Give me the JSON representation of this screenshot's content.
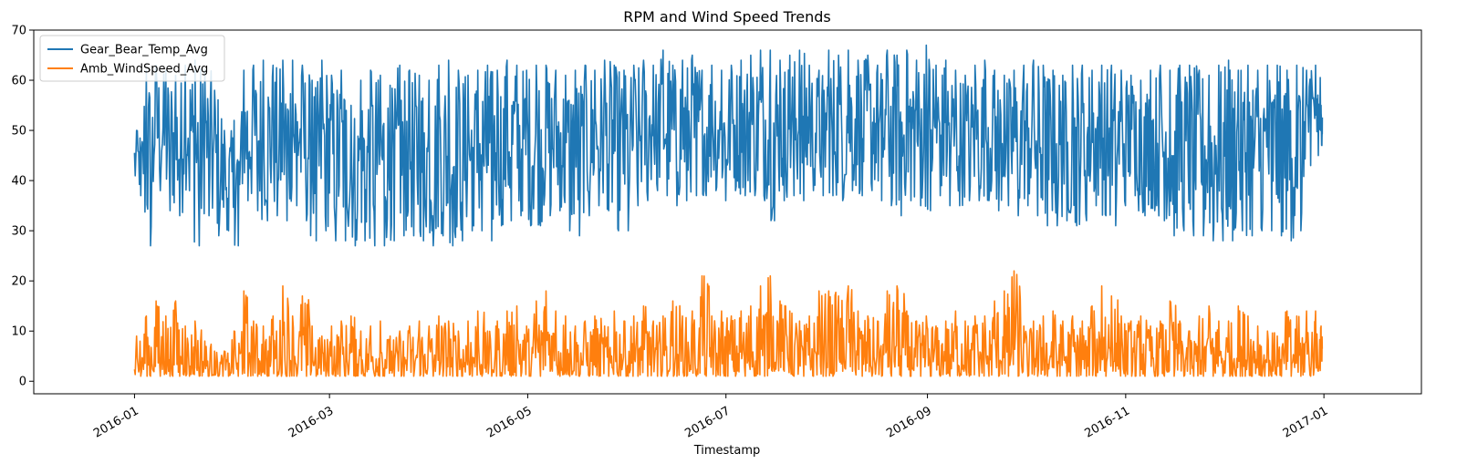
{
  "chart_data": {
    "type": "line",
    "title": "RPM and Wind Speed Trends",
    "xlabel": "Timestamp",
    "ylabel": "",
    "x_range": [
      "2015-12-01",
      "2017-01-31"
    ],
    "x_ticks": [
      "2016-01",
      "2016-03",
      "2016-05",
      "2016-07",
      "2016-09",
      "2016-11",
      "2017-01"
    ],
    "ylim": [
      -2.5,
      70
    ],
    "y_ticks": [
      0,
      10,
      20,
      30,
      40,
      50,
      60,
      70
    ],
    "grid": false,
    "legend": {
      "placement": "top-left"
    },
    "series": [
      {
        "name": "Gear_Bear_Temp_Avg",
        "color": "#1f77b4",
        "dates": [
          "2016-01-01",
          "2016-01-04",
          "2016-01-07",
          "2016-01-10",
          "2016-01-13",
          "2016-01-16",
          "2016-01-19",
          "2016-01-22",
          "2016-01-25",
          "2016-01-28",
          "2016-01-31",
          "2016-02-03",
          "2016-02-06",
          "2016-02-09",
          "2016-02-12",
          "2016-02-15",
          "2016-02-18",
          "2016-02-21",
          "2016-02-24",
          "2016-02-27",
          "2016-03-01",
          "2016-03-04",
          "2016-03-07",
          "2016-03-10",
          "2016-03-13",
          "2016-03-16",
          "2016-03-19",
          "2016-03-22",
          "2016-03-25",
          "2016-03-28",
          "2016-03-31",
          "2016-04-03",
          "2016-04-06",
          "2016-04-09",
          "2016-04-12",
          "2016-04-15",
          "2016-04-18",
          "2016-04-21",
          "2016-04-24",
          "2016-04-27",
          "2016-04-30",
          "2016-05-03",
          "2016-05-06",
          "2016-05-09",
          "2016-05-12",
          "2016-05-15",
          "2016-05-18",
          "2016-05-21",
          "2016-05-24",
          "2016-05-27",
          "2016-05-30",
          "2016-06-02",
          "2016-06-05",
          "2016-06-08",
          "2016-06-11",
          "2016-06-14",
          "2016-06-17",
          "2016-06-20",
          "2016-06-23",
          "2016-06-26",
          "2016-06-29",
          "2016-07-02",
          "2016-07-05",
          "2016-07-08",
          "2016-07-11",
          "2016-07-14",
          "2016-07-17",
          "2016-07-20",
          "2016-07-23",
          "2016-07-26",
          "2016-07-29",
          "2016-08-01",
          "2016-08-04",
          "2016-08-07",
          "2016-08-10",
          "2016-08-13",
          "2016-08-16",
          "2016-08-19",
          "2016-08-22",
          "2016-08-25",
          "2016-08-28",
          "2016-08-31",
          "2016-09-03",
          "2016-09-06",
          "2016-09-09",
          "2016-09-12",
          "2016-09-15",
          "2016-09-18",
          "2016-09-21",
          "2016-09-24",
          "2016-09-27",
          "2016-09-30",
          "2016-10-03",
          "2016-10-06",
          "2016-10-09",
          "2016-10-12",
          "2016-10-15",
          "2016-10-18",
          "2016-10-21",
          "2016-10-24",
          "2016-10-27",
          "2016-10-30",
          "2016-11-02",
          "2016-11-05",
          "2016-11-08",
          "2016-11-11",
          "2016-11-14",
          "2016-11-17",
          "2016-11-20",
          "2016-11-23",
          "2016-11-26",
          "2016-11-29",
          "2016-12-02",
          "2016-12-05",
          "2016-12-08",
          "2016-12-11",
          "2016-12-14",
          "2016-12-17",
          "2016-12-20",
          "2016-12-23",
          "2016-12-26",
          "2016-12-29",
          "2016-12-31"
        ],
        "low": [
          37,
          27,
          38,
          34,
          33,
          38,
          27,
          33,
          29,
          30,
          27,
          36,
          34,
          32,
          33,
          32,
          35,
          32,
          28,
          30,
          28,
          28,
          27,
          28,
          27,
          27,
          28,
          29,
          29,
          28,
          27,
          29,
          27,
          28,
          30,
          30,
          28,
          31,
          32,
          33,
          31,
          31,
          33,
          34,
          30,
          29,
          33,
          35,
          34,
          30,
          30,
          35,
          36,
          38,
          37,
          35,
          36,
          37,
          37,
          38,
          36,
          38,
          37,
          37,
          36,
          32,
          36,
          37,
          36,
          38,
          37,
          37,
          36,
          38,
          37,
          38,
          36,
          35,
          33,
          36,
          35,
          34,
          37,
          35,
          35,
          36,
          36,
          36,
          34,
          35,
          33,
          35,
          33,
          31,
          31,
          32,
          31,
          32,
          35,
          33,
          31,
          35,
          37,
          33,
          34,
          32,
          29,
          30,
          29,
          29,
          28,
          28,
          28,
          30,
          29,
          30,
          30,
          29,
          28,
          30,
          43,
          45,
          47
        ],
        "high": [
          50,
          62,
          63,
          62,
          61,
          63,
          64,
          62,
          58,
          50,
          52,
          62,
          63,
          64,
          63,
          64,
          64,
          63,
          60,
          64,
          61,
          62,
          55,
          60,
          62,
          61,
          59,
          63,
          62,
          61,
          60,
          63,
          64,
          62,
          61,
          62,
          63,
          62,
          64,
          63,
          62,
          63,
          63,
          62,
          61,
          62,
          63,
          62,
          64,
          63,
          62,
          63,
          64,
          63,
          66,
          63,
          64,
          65,
          62,
          63,
          62,
          63,
          64,
          65,
          66,
          66,
          64,
          65,
          66,
          63,
          62,
          66,
          65,
          66,
          64,
          65,
          63,
          66,
          65,
          66,
          64,
          67,
          63,
          64,
          62,
          61,
          63,
          64,
          62,
          61,
          62,
          63,
          64,
          63,
          62,
          61,
          63,
          63,
          62,
          63,
          63,
          62,
          61,
          60,
          62,
          63,
          62,
          63,
          63,
          62,
          61,
          63,
          64,
          62,
          63,
          62,
          63,
          63,
          62,
          63,
          62,
          63,
          55
        ]
      },
      {
        "name": "Amb_WindSpeed_Avg",
        "color": "#ff7f0e",
        "dates": [
          "2016-01-01",
          "2016-01-04",
          "2016-01-07",
          "2016-01-10",
          "2016-01-13",
          "2016-01-16",
          "2016-01-19",
          "2016-01-22",
          "2016-01-25",
          "2016-01-28",
          "2016-01-31",
          "2016-02-03",
          "2016-02-06",
          "2016-02-09",
          "2016-02-12",
          "2016-02-15",
          "2016-02-18",
          "2016-02-21",
          "2016-02-24",
          "2016-02-27",
          "2016-03-01",
          "2016-03-04",
          "2016-03-07",
          "2016-03-10",
          "2016-03-13",
          "2016-03-16",
          "2016-03-19",
          "2016-03-22",
          "2016-03-25",
          "2016-03-28",
          "2016-03-31",
          "2016-04-03",
          "2016-04-06",
          "2016-04-09",
          "2016-04-12",
          "2016-04-15",
          "2016-04-18",
          "2016-04-21",
          "2016-04-24",
          "2016-04-27",
          "2016-04-30",
          "2016-05-03",
          "2016-05-06",
          "2016-05-09",
          "2016-05-12",
          "2016-05-15",
          "2016-05-18",
          "2016-05-21",
          "2016-05-24",
          "2016-05-27",
          "2016-05-30",
          "2016-06-02",
          "2016-06-05",
          "2016-06-08",
          "2016-06-11",
          "2016-06-14",
          "2016-06-17",
          "2016-06-20",
          "2016-06-23",
          "2016-06-26",
          "2016-06-29",
          "2016-07-02",
          "2016-07-05",
          "2016-07-08",
          "2016-07-11",
          "2016-07-14",
          "2016-07-17",
          "2016-07-20",
          "2016-07-23",
          "2016-07-26",
          "2016-07-29",
          "2016-08-01",
          "2016-08-04",
          "2016-08-07",
          "2016-08-10",
          "2016-08-13",
          "2016-08-16",
          "2016-08-19",
          "2016-08-22",
          "2016-08-25",
          "2016-08-28",
          "2016-08-31",
          "2016-09-03",
          "2016-09-06",
          "2016-09-09",
          "2016-09-12",
          "2016-09-15",
          "2016-09-18",
          "2016-09-21",
          "2016-09-24",
          "2016-09-27",
          "2016-09-30",
          "2016-10-03",
          "2016-10-06",
          "2016-10-09",
          "2016-10-12",
          "2016-10-15",
          "2016-10-18",
          "2016-10-21",
          "2016-10-24",
          "2016-10-27",
          "2016-10-30",
          "2016-11-02",
          "2016-11-05",
          "2016-11-08",
          "2016-11-11",
          "2016-11-14",
          "2016-11-17",
          "2016-11-20",
          "2016-11-23",
          "2016-11-26",
          "2016-11-29",
          "2016-12-02",
          "2016-12-05",
          "2016-12-08",
          "2016-12-11",
          "2016-12-14",
          "2016-12-17",
          "2016-12-20",
          "2016-12-23",
          "2016-12-26",
          "2016-12-29",
          "2016-12-31"
        ],
        "low": [
          1,
          1,
          1,
          1,
          1,
          1,
          1,
          1,
          1,
          1,
          1,
          1,
          1,
          1,
          1,
          1,
          1,
          1,
          1,
          1,
          1,
          1,
          1,
          1,
          1,
          1,
          1,
          1,
          1,
          1,
          1,
          1,
          1,
          1,
          1,
          1,
          1,
          1,
          1,
          1,
          1,
          1,
          2,
          1,
          1,
          1,
          1,
          1,
          1,
          1,
          1,
          1,
          1,
          1,
          1,
          1,
          1,
          1,
          1,
          1,
          1,
          1,
          1,
          1,
          1,
          2,
          2,
          1,
          1,
          1,
          1,
          1,
          2,
          2,
          1,
          1,
          1,
          1,
          1,
          1,
          1,
          1,
          1,
          1,
          1,
          1,
          1,
          1,
          1,
          1,
          1,
          1,
          1,
          1,
          1,
          1,
          1,
          1,
          1,
          1,
          2,
          1,
          1,
          1,
          1,
          1,
          1,
          1,
          1,
          1,
          1,
          1,
          1,
          1,
          1,
          1,
          1,
          1,
          1,
          1,
          1,
          2,
          4
        ],
        "high": [
          9,
          13,
          16,
          13,
          16,
          11,
          12,
          8,
          6,
          6,
          10,
          18,
          12,
          11,
          13,
          19,
          13,
          17,
          11,
          9,
          11,
          12,
          13,
          10,
          11,
          12,
          9,
          10,
          11,
          12,
          11,
          13,
          12,
          10,
          12,
          14,
          10,
          12,
          14,
          15,
          11,
          16,
          18,
          14,
          13,
          11,
          12,
          13,
          11,
          14,
          12,
          13,
          15,
          12,
          13,
          16,
          13,
          14,
          21,
          13,
          14,
          13,
          14,
          15,
          19,
          21,
          16,
          14,
          12,
          13,
          18,
          18,
          17,
          19,
          14,
          13,
          12,
          18,
          19,
          14,
          12,
          13,
          11,
          12,
          14,
          12,
          13,
          13,
          16,
          18,
          22,
          11,
          12,
          13,
          14,
          12,
          13,
          12,
          15,
          19,
          17,
          13,
          12,
          13,
          11,
          12,
          16,
          12,
          10,
          13,
          15,
          12,
          12,
          15,
          13,
          11,
          10,
          9,
          14,
          13,
          14,
          14,
          11
        ]
      }
    ]
  }
}
